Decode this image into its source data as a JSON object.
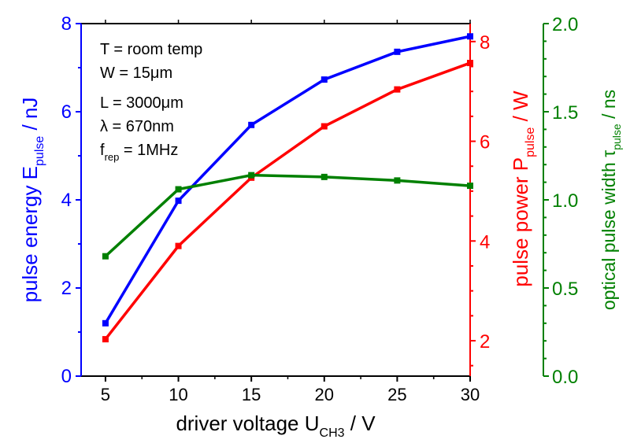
{
  "chart_data": {
    "type": "line",
    "title": "",
    "xlabel": {
      "main": "driver voltage U",
      "sub": "CH3",
      "unit": " / V"
    },
    "x": [
      5,
      10,
      15,
      20,
      25,
      30
    ],
    "xlim": [
      3.33,
      30
    ],
    "xticks": [
      5,
      10,
      15,
      20,
      25,
      30
    ],
    "axes": {
      "left": {
        "label_main": "pulse energy E",
        "label_sub": "pulse",
        "label_unit": " / nJ",
        "lim": [
          0,
          8
        ],
        "ticks": [
          "0",
          "2",
          "4",
          "6",
          "8"
        ],
        "tick_values": [
          0,
          2,
          4,
          6,
          8
        ],
        "color": "#0000ff"
      },
      "right1": {
        "label_main": "pulse power P",
        "label_sub": "pulse",
        "label_unit": " / W",
        "lim": [
          1.29,
          8.36
        ],
        "ticks": [
          "2",
          "4",
          "6",
          "8"
        ],
        "tick_values": [
          2,
          4,
          6,
          8
        ],
        "color": "#ff0000"
      },
      "right2": {
        "label_main": "optical pulse width τ",
        "label_sub": "pulse",
        "label_unit": " / ns",
        "lim": [
          0,
          2.0
        ],
        "ticks": [
          "0.0",
          "0.5",
          "1.0",
          "1.5",
          "2.0"
        ],
        "tick_values": [
          0,
          0.5,
          1.0,
          1.5,
          2.0
        ],
        "color": "#008000"
      }
    },
    "series": [
      {
        "name": "pulse energy",
        "axis": "left",
        "color": "#0000ff",
        "values": [
          1.2,
          3.98,
          5.7,
          6.73,
          7.36,
          7.71
        ]
      },
      {
        "name": "pulse power",
        "axis": "right1",
        "color": "#ff0000",
        "values": [
          2.03,
          3.9,
          5.27,
          6.3,
          7.04,
          7.57
        ]
      },
      {
        "name": "optical pulse width",
        "axis": "right2",
        "color": "#008000",
        "values": [
          0.68,
          1.06,
          1.14,
          1.13,
          1.11,
          1.08
        ]
      }
    ],
    "annotations": [
      {
        "text": "T = room temp"
      },
      {
        "text": "W = 15μm"
      },
      {
        "text": "L = 3000μm"
      },
      {
        "text": "λ = 670nm"
      },
      {
        "main": "f",
        "sub": "rep",
        "rest": " = 1MHz"
      }
    ]
  }
}
